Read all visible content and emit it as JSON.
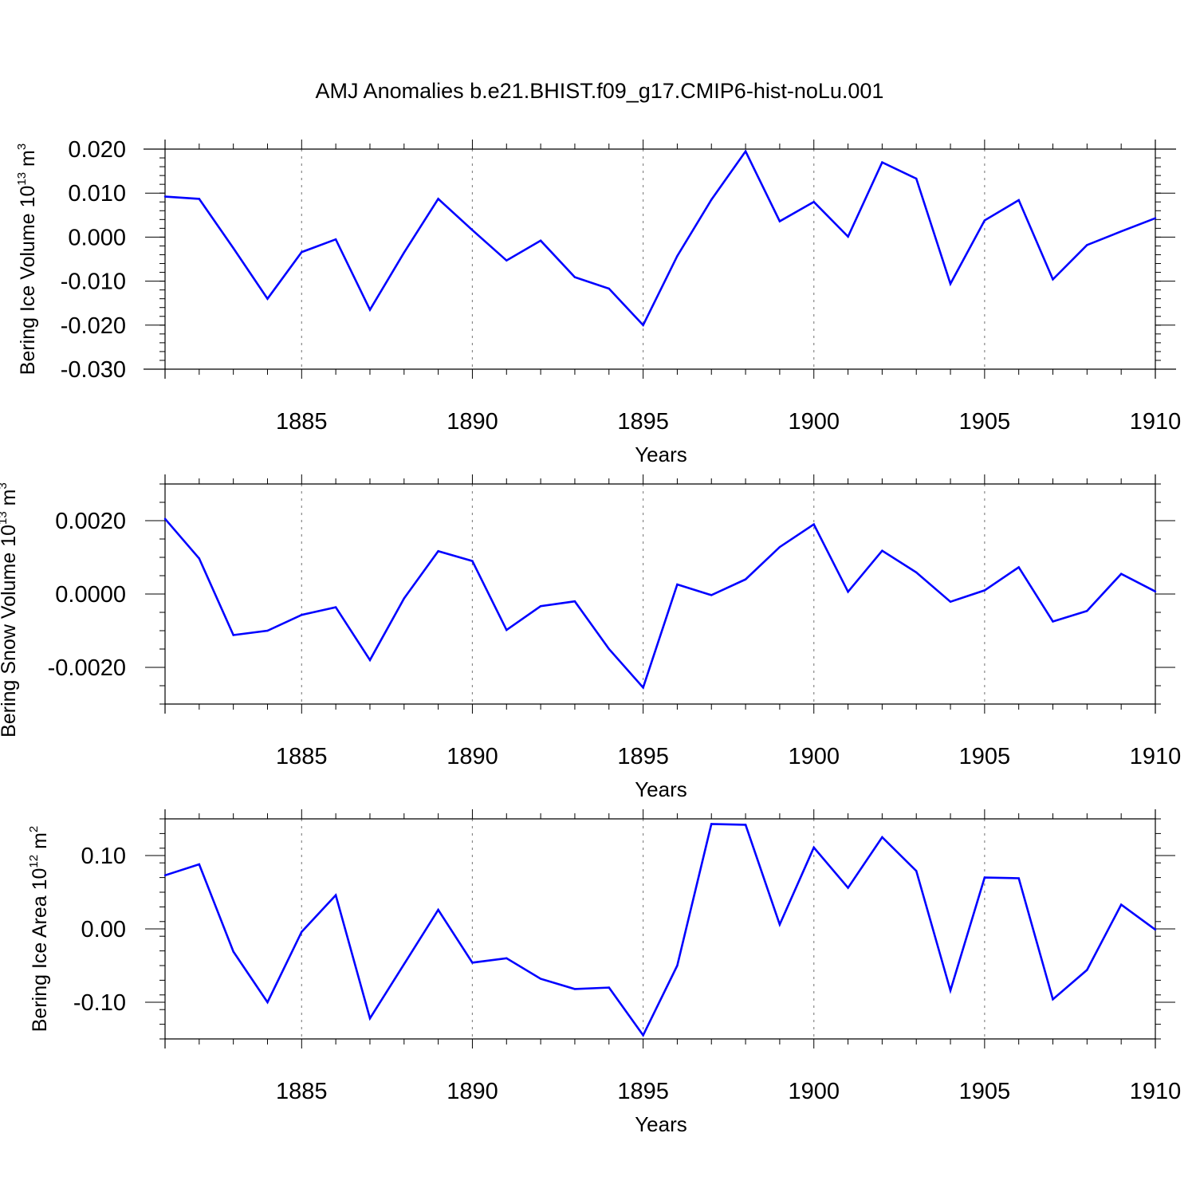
{
  "title": "AMJ Anomalies b.e21.BHIST.f09_g17.CMIP6-hist-noLu.001",
  "colors": {
    "series": "#0000ff",
    "grid": "#888888"
  },
  "chart_data": [
    {
      "type": "line",
      "ylabel": {
        "prefix": "Bering Ice Volume 10",
        "sup1": "13",
        "mid": " m",
        "sup2": "3"
      },
      "xlabel": "Years",
      "xlim": [
        1881,
        1910
      ],
      "ylim": [
        -0.03,
        0.02
      ],
      "yticks": [
        -0.03,
        -0.02,
        -0.01,
        0.0,
        0.01,
        0.02
      ],
      "ytick_labels": [
        "-0.030",
        "-0.020",
        "-0.010",
        "0.000",
        "0.010",
        "0.020"
      ],
      "yminor_step": 0.002,
      "xticks": [
        1885,
        1890,
        1895,
        1900,
        1905,
        1910
      ],
      "xtick_labels": [
        "1885",
        "1890",
        "1895",
        "1900",
        "1905",
        "1910"
      ],
      "x": [
        1881,
        1882,
        1883,
        1884,
        1885,
        1886,
        1887,
        1888,
        1889,
        1890,
        1891,
        1892,
        1893,
        1894,
        1895,
        1896,
        1897,
        1898,
        1899,
        1900,
        1901,
        1902,
        1903,
        1904,
        1905,
        1906,
        1907,
        1908,
        1909,
        1910
      ],
      "values": [
        0.0092,
        0.0087,
        -0.0025,
        -0.014,
        -0.0034,
        -0.0005,
        -0.0165,
        -0.0035,
        0.0087,
        0.0016,
        -0.0053,
        -0.0008,
        -0.0091,
        -0.0117,
        -0.02,
        -0.0043,
        0.0085,
        0.0195,
        0.0036,
        0.008,
        0.0001,
        0.017,
        0.0133,
        -0.0106,
        0.0038,
        0.0084,
        -0.0096,
        -0.0018,
        0.0013,
        0.0043
      ]
    },
    {
      "type": "line",
      "ylabel": {
        "prefix": "Bering Snow Volume 10",
        "sup1": "13",
        "mid": " m",
        "sup2": "3"
      },
      "xlabel": "Years",
      "xlim": [
        1881,
        1910
      ],
      "ylim": [
        -0.003,
        0.003
      ],
      "yticks": [
        -0.002,
        0.0,
        0.002
      ],
      "ytick_labels": [
        "-0.0020",
        "0.0000",
        "0.0020"
      ],
      "yminor_step": 0.0005,
      "xticks": [
        1885,
        1890,
        1895,
        1900,
        1905,
        1910
      ],
      "xtick_labels": [
        "1885",
        "1890",
        "1895",
        "1900",
        "1905",
        "1910"
      ],
      "x": [
        1881,
        1882,
        1883,
        1884,
        1885,
        1886,
        1887,
        1888,
        1889,
        1890,
        1891,
        1892,
        1893,
        1894,
        1895,
        1896,
        1897,
        1898,
        1899,
        1900,
        1901,
        1902,
        1903,
        1904,
        1905,
        1906,
        1907,
        1908,
        1909,
        1910
      ],
      "values": [
        0.00205,
        0.00097,
        -0.00112,
        -0.001,
        -0.00057,
        -0.00036,
        -0.0018,
        -0.00012,
        0.00117,
        0.0009,
        -0.00098,
        -0.00033,
        -0.0002,
        -0.0015,
        -0.00255,
        0.00026,
        -3e-05,
        0.0004,
        0.00128,
        0.0019,
        6e-05,
        0.00118,
        0.00059,
        -0.00021,
        0.0001,
        0.00073,
        -0.00075,
        -0.00046,
        0.00055,
        7e-05
      ]
    },
    {
      "type": "line",
      "ylabel": {
        "prefix": "Bering Ice Area 10",
        "sup1": "12",
        "mid": " m",
        "sup2": "2"
      },
      "xlabel": "Years",
      "xlim": [
        1881,
        1910
      ],
      "ylim": [
        -0.15,
        0.15
      ],
      "yticks": [
        -0.1,
        0.0,
        0.1
      ],
      "ytick_labels": [
        "-0.10",
        "0.00",
        "0.10"
      ],
      "yminor_step": 0.02,
      "xticks": [
        1885,
        1890,
        1895,
        1900,
        1905,
        1910
      ],
      "xtick_labels": [
        "1885",
        "1890",
        "1895",
        "1900",
        "1905",
        "1910"
      ],
      "x": [
        1881,
        1882,
        1883,
        1884,
        1885,
        1886,
        1887,
        1888,
        1889,
        1890,
        1891,
        1892,
        1893,
        1894,
        1895,
        1896,
        1897,
        1898,
        1899,
        1900,
        1901,
        1902,
        1903,
        1904,
        1905,
        1906,
        1907,
        1908,
        1909,
        1910
      ],
      "values": [
        0.073,
        0.088,
        -0.031,
        -0.1,
        -0.004,
        0.046,
        -0.122,
        -0.048,
        0.026,
        -0.046,
        -0.04,
        -0.068,
        -0.082,
        -0.08,
        -0.145,
        -0.05,
        0.143,
        0.142,
        0.006,
        0.111,
        0.056,
        0.125,
        0.079,
        -0.084,
        0.07,
        0.069,
        -0.096,
        -0.056,
        0.033,
        -0.001
      ]
    }
  ]
}
